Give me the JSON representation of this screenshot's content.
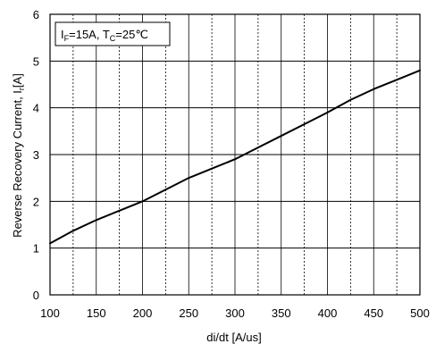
{
  "chart_data": {
    "type": "line",
    "xlabel": "di/dt [A/us]",
    "ylabel_main": "Reverse Recovery Current, I",
    "ylabel_sub": "r",
    "ylabel_unit": "[A]",
    "legend": {
      "i_letter": "I",
      "i_sub": "F",
      "i_rest": "=15A, T",
      "t_sub": "C",
      "t_rest": "=25℃"
    },
    "xlim": [
      100,
      500
    ],
    "ylim": [
      0,
      6
    ],
    "x_ticks": [
      100,
      150,
      200,
      250,
      300,
      350,
      400,
      450,
      500
    ],
    "y_ticks": [
      0,
      1,
      2,
      3,
      4,
      5,
      6
    ],
    "x_minor_step": 25,
    "grid": true,
    "series": [
      {
        "color": "#000000",
        "x": [
          100,
          125,
          150,
          175,
          200,
          225,
          250,
          275,
          300,
          325,
          350,
          375,
          400,
          425,
          450,
          475,
          500
        ],
        "y": [
          1.1,
          1.37,
          1.6,
          1.8,
          2.0,
          2.25,
          2.5,
          2.7,
          2.9,
          3.15,
          3.4,
          3.65,
          3.9,
          4.17,
          4.4,
          4.6,
          4.8
        ]
      }
    ]
  }
}
